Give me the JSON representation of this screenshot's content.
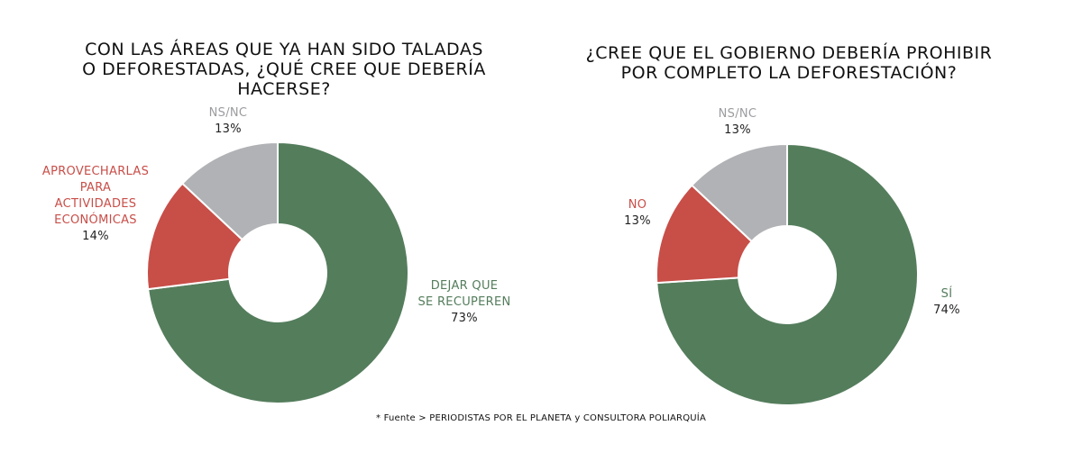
{
  "chart_data": [
    {
      "type": "pie",
      "style": "donut",
      "title_lines": [
        "CON LAS ÁREAS QUE YA HAN SIDO TALADAS",
        "O DEFORESTADAS, ¿QUÉ CREE QUE DEBERÍA HACERSE?"
      ],
      "slices": [
        {
          "name_lines": [
            "DEJAR QUE",
            "SE RECUPEREN"
          ],
          "value": 73,
          "color": "#547d5c"
        },
        {
          "name_lines": [
            "APROVECHARLAS",
            "PARA",
            "ACTIVIDADES",
            "ECONÓMICAS"
          ],
          "value": 14,
          "color": "#c84e48"
        },
        {
          "name_lines": [
            "NS/NC"
          ],
          "value": 13,
          "color": "#b1b2b5"
        }
      ]
    },
    {
      "type": "pie",
      "style": "donut",
      "title_lines": [
        "¿CREE QUE EL GOBIERNO DEBERÍA PROHIBIR",
        "POR COMPLETO LA DEFORESTACIÓN?"
      ],
      "slices": [
        {
          "name_lines": [
            "SÍ"
          ],
          "value": 74,
          "color": "#547d5c"
        },
        {
          "name_lines": [
            "NO"
          ],
          "value": 13,
          "color": "#c84e48"
        },
        {
          "name_lines": [
            "NS/NC"
          ],
          "value": 13,
          "color": "#b1b2b5"
        }
      ]
    }
  ],
  "source": "* Fuente > PERIODISTAS POR EL PLANETA y CONSULTORA POLIARQUÍA"
}
